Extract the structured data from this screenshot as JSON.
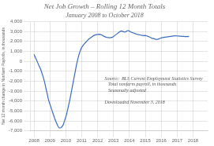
{
  "chart_data": {
    "type": "line",
    "title": "Net Job Growth – Rolling 12 Month Totals",
    "subtitle": "January 2008 to October 2018",
    "ylabel": "Net 12 month change in Nonfarm Payrolls, in thousands",
    "annotation": "Source:  BLS Current Employment Statistics Survey\n   Total nonfarm payroll, in thousands\n   Seasonally adjusted\n\nDownloaded November 3, 2018",
    "color": "#3a6bbf",
    "grid": true,
    "xlim": [
      2007.75,
      2018.92
    ],
    "xticks": [
      2008,
      2009,
      2010,
      2011,
      2012,
      2013,
      2014,
      2015,
      2016,
      2017,
      2018
    ],
    "ylim": [
      -7000,
      4000
    ],
    "yticks": [
      {
        "value": -7000,
        "label": "-7,000"
      },
      {
        "value": -6000,
        "label": "-6,000"
      },
      {
        "value": -5000,
        "label": "-5,000"
      },
      {
        "value": -4000,
        "label": "-4,000"
      },
      {
        "value": -3000,
        "label": "-3,000"
      },
      {
        "value": -2000,
        "label": "-2,000"
      },
      {
        "value": -1000,
        "label": "-1,000"
      },
      0,
      {
        "value": 1000,
        "label": "1,000"
      },
      {
        "value": 2000,
        "label": "2,000"
      },
      {
        "value": 3000,
        "label": "3,000"
      },
      {
        "value": 4000,
        "label": "4,000"
      }
    ],
    "x": [
      2008,
      2008.0833333333333,
      2008.1666666666667,
      2008.25,
      2008.3333333333333,
      2008.4166666666667,
      2008.5,
      2008.5833333333333,
      2008.6666666666667,
      2008.75,
      2008.8333333333333,
      2008.9166666666667,
      2009,
      2009.0833333333333,
      2009.1666666666667,
      2009.25,
      2009.3333333333333,
      2009.4166666666667,
      2009.5,
      2009.5833333333333,
      2009.6666666666667,
      2009.75,
      2009.8333333333333,
      2009.9166666666667,
      2010,
      2010.0833333333333,
      2010.1666666666667,
      2010.25,
      2010.3333333333333,
      2010.4166666666667,
      2010.5,
      2010.5833333333333,
      2010.6666666666667,
      2010.75,
      2010.8333333333333,
      2010.9166666666667,
      2011,
      2011.0833333333333,
      2011.1666666666667,
      2011.25,
      2011.3333333333333,
      2011.4166666666667,
      2011.5,
      2011.5833333333333,
      2011.6666666666667,
      2011.75,
      2011.8333333333333,
      2011.9166666666667,
      2012,
      2012.0833333333333,
      2012.1666666666667,
      2012.25,
      2012.3333333333333,
      2012.4166666666667,
      2012.5,
      2012.5833333333333,
      2012.6666666666667,
      2012.75,
      2012.8333333333333,
      2012.9166666666667,
      2013,
      2013.0833333333333,
      2013.1666666666667,
      2013.25,
      2013.3333333333333,
      2013.4166666666667,
      2013.5,
      2013.5833333333333,
      2013.6666666666667,
      2013.75,
      2013.8333333333333,
      2013.9166666666667,
      2014,
      2014.0833333333333,
      2014.1666666666667,
      2014.25,
      2014.3333333333333,
      2014.4166666666667,
      2014.5,
      2014.5833333333333,
      2014.6666666666667,
      2014.75,
      2014.8333333333333,
      2014.9166666666667,
      2015,
      2015.0833333333333,
      2015.1666666666667,
      2015.25,
      2015.3333333333333,
      2015.4166666666667,
      2015.5,
      2015.5833333333333,
      2015.6666666666667,
      2015.75,
      2015.8333333333333,
      2015.9166666666667,
      2016,
      2016.0833333333333,
      2016.1666666666667,
      2016.25,
      2016.3333333333333,
      2016.4166666666667,
      2016.5,
      2016.5833333333333,
      2016.6666666666667,
      2016.75,
      2016.8333333333333,
      2016.9166666666667,
      2017,
      2017.0833333333333,
      2017.1666666666667,
      2017.25,
      2017.3333333333333,
      2017.4166666666667,
      2017.5,
      2017.5833333333333,
      2017.6666666666667,
      2017.75
    ],
    "values": [
      700,
      400,
      100,
      -200,
      -500,
      -800,
      -1200,
      -1600,
      -2100,
      -2700,
      -3300,
      -3900,
      -4300,
      -4700,
      -5100,
      -5500,
      -5900,
      -6200,
      -6500,
      -6700,
      -6700,
      -6600,
      -6400,
      -6000,
      -5600,
      -5100,
      -4500,
      -3900,
      -3200,
      -2500,
      -1800,
      -1100,
      -400,
      200,
      700,
      1100,
      1400,
      1600,
      1750,
      1900,
      2050,
      2200,
      2300,
      2400,
      2500,
      2580,
      2640,
      2680,
      2700,
      2720,
      2700,
      2650,
      2580,
      2500,
      2440,
      2400,
      2380,
      2360,
      2380,
      2400,
      2500,
      2600,
      2700,
      2800,
      2900,
      3000,
      3050,
      3000,
      2950,
      2950,
      3050,
      3100,
      3050,
      2950,
      2900,
      2850,
      2800,
      2750,
      2700,
      2680,
      2650,
      2620,
      2600,
      2580,
      2600,
      2550,
      2500,
      2450,
      2400,
      2300,
      2300,
      2250,
      2200,
      2200,
      2250,
      2300,
      2350,
      2380,
      2400,
      2420,
      2440,
      2460,
      2480,
      2500,
      2520,
      2540,
      2560,
      2560,
      2550,
      2540,
      2530,
      2520,
      2510,
      2500,
      2490,
      2480,
      2480,
      2500
    ]
  }
}
